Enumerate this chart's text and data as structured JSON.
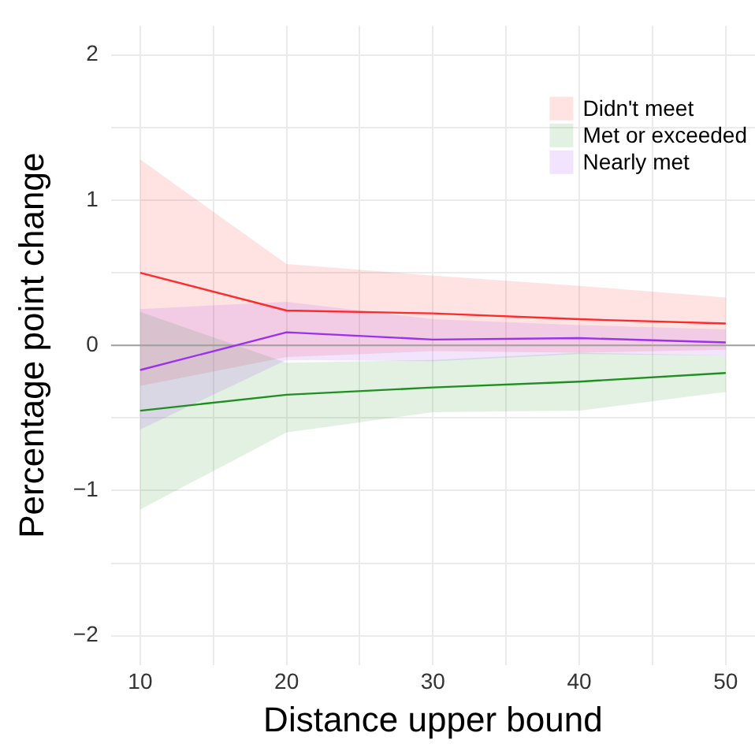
{
  "chart_data": {
    "type": "line",
    "xlabel": "Distance upper bound",
    "ylabel": "Percentage point change",
    "x": [
      10,
      20,
      30,
      40,
      50
    ],
    "series": [
      {
        "name": "Didn't meet",
        "color": "#ff2a2a",
        "values": [
          0.5,
          0.24,
          0.22,
          0.18,
          0.15
        ],
        "lower": [
          -0.28,
          -0.08,
          -0.04,
          -0.05,
          -0.03
        ],
        "upper": [
          1.28,
          0.56,
          0.48,
          0.41,
          0.33
        ]
      },
      {
        "name": "Met or exceeded",
        "color": "#1f8f1f",
        "values": [
          -0.45,
          -0.34,
          -0.29,
          -0.25,
          -0.19
        ],
        "lower": [
          -1.13,
          -0.6,
          -0.46,
          -0.45,
          -0.32
        ],
        "upper": [
          0.23,
          -0.12,
          -0.1,
          -0.05,
          -0.07
        ]
      },
      {
        "name": "Nearly met",
        "color": "#9a30f0",
        "values": [
          -0.17,
          0.09,
          0.04,
          0.05,
          0.02
        ],
        "lower": [
          -0.58,
          -0.1,
          -0.11,
          -0.06,
          -0.07
        ],
        "upper": [
          0.25,
          0.3,
          0.18,
          0.14,
          0.11
        ]
      }
    ],
    "xlim": [
      8,
      52
    ],
    "xticks": [
      10,
      {
        "value": 15,
        "label": null
      },
      20,
      {
        "value": 25,
        "label": null
      },
      30,
      {
        "value": 35,
        "label": null
      },
      40,
      {
        "value": 45,
        "label": null
      },
      50
    ],
    "ylim": [
      -2.2,
      2.2
    ],
    "yticks": [
      -2,
      {
        "value": -1.5,
        "label": null
      },
      -1,
      {
        "value": -0.5,
        "label": null
      },
      0,
      {
        "value": 0.5,
        "label": null
      },
      1,
      {
        "value": 1.5,
        "label": null
      },
      2
    ],
    "ref_lines": [
      {
        "axis": "y",
        "value": 0,
        "color": "#a0a0a0"
      }
    ],
    "grid": true,
    "legend": "top right",
    "marker": "none",
    "line_style": "solid"
  }
}
